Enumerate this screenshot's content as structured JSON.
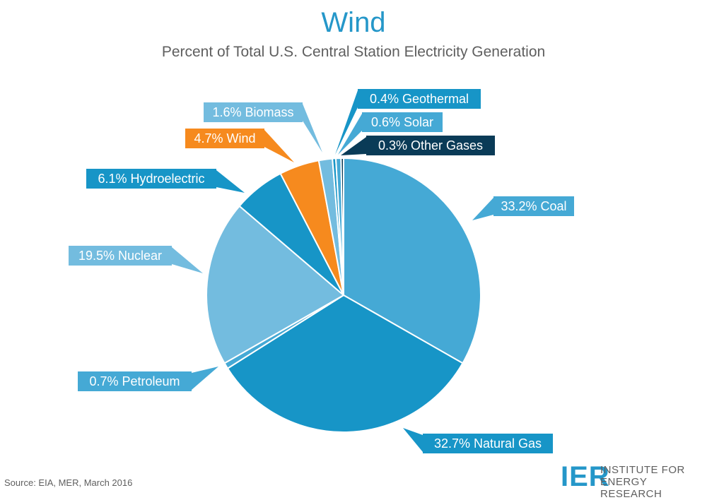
{
  "header": {
    "title": "Wind",
    "subtitle": "Percent of Total U.S. Central Station Electricity Generation"
  },
  "chart_data": {
    "type": "pie",
    "title": "Wind",
    "subtitle": "Percent of Total U.S. Central Station Electricity Generation",
    "unit": "%",
    "start": "top",
    "direction": "clockwise",
    "slices": [
      {
        "name": "Coal",
        "value": 33.2,
        "label": "33.2% Coal",
        "color": "#45a9d5",
        "label_color": "#45a9d5"
      },
      {
        "name": "Natural Gas",
        "value": 32.7,
        "label": "32.7% Natural Gas",
        "color": "#1795c7",
        "label_color": "#1795c7"
      },
      {
        "name": "Petroleum",
        "value": 0.7,
        "label": "0.7% Petroleum",
        "color": "#45a9d5",
        "label_color": "#45a9d5"
      },
      {
        "name": "Nuclear",
        "value": 19.5,
        "label": "19.5% Nuclear",
        "color": "#73bcdf",
        "label_color": "#73bcdf"
      },
      {
        "name": "Hydroelectric",
        "value": 6.1,
        "label": "6.1% Hydroelectric",
        "color": "#1795c7",
        "label_color": "#1795c7"
      },
      {
        "name": "Wind",
        "value": 4.7,
        "label": "4.7% Wind",
        "color": "#f68a1e",
        "label_color": "#f68a1e"
      },
      {
        "name": "Biomass",
        "value": 1.6,
        "label": "1.6% Biomass",
        "color": "#73bcdf",
        "label_color": "#73bcdf"
      },
      {
        "name": "Geothermal",
        "value": 0.4,
        "label": "0.4% Geothermal",
        "color": "#1795c7",
        "label_color": "#1795c7"
      },
      {
        "name": "Solar",
        "value": 0.6,
        "label": "0.6% Solar",
        "color": "#45a9d5",
        "label_color": "#45a9d5"
      },
      {
        "name": "Other Gases",
        "value": 0.3,
        "label": "0.3% Other Gases",
        "color": "#0a3b57",
        "label_color": "#0a3b57"
      }
    ]
  },
  "footer": {
    "source": "Source: EIA, MER, March 2016",
    "logo_mark": "IER",
    "logo_line1": "INSTITUTE FOR",
    "logo_line2": "ENERGY RESEARCH"
  }
}
